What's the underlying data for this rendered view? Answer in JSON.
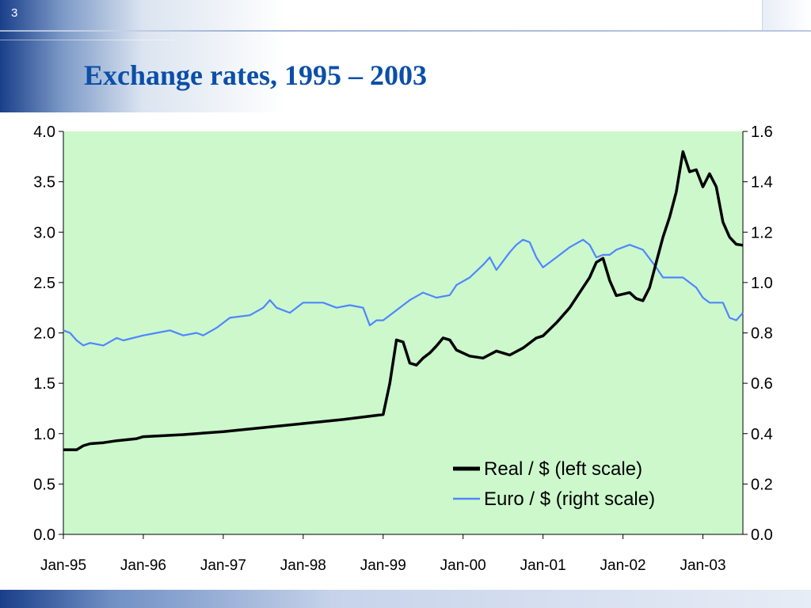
{
  "slide": {
    "number": "3",
    "title": "Exchange rates, 1995 – 2003"
  },
  "colors": {
    "plot_bg": "#ccf8cc",
    "real_line": "#000000",
    "euro_line": "#4f86ff",
    "title": "#0b4fa8"
  },
  "chart_data": {
    "type": "line",
    "title": "",
    "xlabel": "",
    "x_range": [
      "Jan-95",
      "Jul-03"
    ],
    "x_ticks": [
      "Jan-95",
      "Jan-96",
      "Jan-97",
      "Jan-98",
      "Jan-99",
      "Jan-00",
      "Jan-01",
      "Jan-02",
      "Jan-03"
    ],
    "y_left": {
      "ylim": [
        0,
        4.0
      ],
      "ticks": [
        "0.0",
        "0.5",
        "1.0",
        "1.5",
        "2.0",
        "2.5",
        "3.0",
        "3.5",
        "4.0"
      ]
    },
    "y_right": {
      "ylim": [
        0,
        1.6
      ],
      "ticks": [
        "0.0",
        "0.2",
        "0.4",
        "0.6",
        "0.8",
        "1.0",
        "1.2",
        "1.4",
        "1.6"
      ]
    },
    "grid": false,
    "legend_position": "bottom-right",
    "series": [
      {
        "name": "Real / $ (left scale)",
        "axis": "left",
        "points": [
          [
            "Jan-95",
            0.84
          ],
          [
            "Mar-95",
            0.84
          ],
          [
            "Apr-95",
            0.88
          ],
          [
            "May-95",
            0.9
          ],
          [
            "Jul-95",
            0.91
          ],
          [
            "Sep-95",
            0.93
          ],
          [
            "Dec-95",
            0.95
          ],
          [
            "Jan-96",
            0.97
          ],
          [
            "Jul-96",
            0.99
          ],
          [
            "Jan-97",
            1.02
          ],
          [
            "Jul-97",
            1.06
          ],
          [
            "Jan-98",
            1.1
          ],
          [
            "Jul-98",
            1.14
          ],
          [
            "Jan-99",
            1.19
          ],
          [
            "Feb-99",
            1.5
          ],
          [
            "Mar-99",
            1.93
          ],
          [
            "Apr-99",
            1.91
          ],
          [
            "May-99",
            1.7
          ],
          [
            "Jun-99",
            1.68
          ],
          [
            "Jul-99",
            1.75
          ],
          [
            "Aug-99",
            1.8
          ],
          [
            "Sep-99",
            1.87
          ],
          [
            "Oct-99",
            1.95
          ],
          [
            "Nov-99",
            1.93
          ],
          [
            "Dec-99",
            1.83
          ],
          [
            "Feb-00",
            1.77
          ],
          [
            "Apr-00",
            1.75
          ],
          [
            "Jun-00",
            1.82
          ],
          [
            "Aug-00",
            1.78
          ],
          [
            "Oct-00",
            1.85
          ],
          [
            "Dec-00",
            1.95
          ],
          [
            "Jan-01",
            1.97
          ],
          [
            "Mar-01",
            2.1
          ],
          [
            "May-01",
            2.25
          ],
          [
            "Jul-01",
            2.45
          ],
          [
            "Aug-01",
            2.55
          ],
          [
            "Sep-01",
            2.7
          ],
          [
            "Oct-01",
            2.74
          ],
          [
            "Nov-01",
            2.52
          ],
          [
            "Dec-01",
            2.37
          ],
          [
            "Feb-02",
            2.4
          ],
          [
            "Mar-02",
            2.34
          ],
          [
            "Apr-02",
            2.32
          ],
          [
            "May-02",
            2.45
          ],
          [
            "Jun-02",
            2.7
          ],
          [
            "Jul-02",
            2.95
          ],
          [
            "Aug-02",
            3.15
          ],
          [
            "Sep-02",
            3.4
          ],
          [
            "Oct-02",
            3.8
          ],
          [
            "Nov-02",
            3.6
          ],
          [
            "Dec-02",
            3.62
          ],
          [
            "Jan-03",
            3.45
          ],
          [
            "Feb-03",
            3.58
          ],
          [
            "Mar-03",
            3.45
          ],
          [
            "Apr-03",
            3.1
          ],
          [
            "May-03",
            2.95
          ],
          [
            "Jun-03",
            2.88
          ],
          [
            "Jul-03",
            2.87
          ]
        ]
      },
      {
        "name": "Euro / $ (right scale)",
        "axis": "right",
        "points": [
          [
            "Jan-95",
            0.81
          ],
          [
            "Feb-95",
            0.8
          ],
          [
            "Mar-95",
            0.77
          ],
          [
            "Apr-95",
            0.75
          ],
          [
            "May-95",
            0.76
          ],
          [
            "Jul-95",
            0.75
          ],
          [
            "Sep-95",
            0.78
          ],
          [
            "Oct-95",
            0.77
          ],
          [
            "Jan-96",
            0.79
          ],
          [
            "Mar-96",
            0.8
          ],
          [
            "May-96",
            0.81
          ],
          [
            "Jul-96",
            0.79
          ],
          [
            "Sep-96",
            0.8
          ],
          [
            "Oct-96",
            0.79
          ],
          [
            "Dec-96",
            0.82
          ],
          [
            "Feb-97",
            0.86
          ],
          [
            "May-97",
            0.87
          ],
          [
            "Jul-97",
            0.9
          ],
          [
            "Aug-97",
            0.93
          ],
          [
            "Sep-97",
            0.9
          ],
          [
            "Nov-97",
            0.88
          ],
          [
            "Jan-98",
            0.92
          ],
          [
            "Apr-98",
            0.92
          ],
          [
            "Jun-98",
            0.9
          ],
          [
            "Aug-98",
            0.91
          ],
          [
            "Oct-98",
            0.9
          ],
          [
            "Nov-98",
            0.83
          ],
          [
            "Dec-98",
            0.85
          ],
          [
            "Jan-99",
            0.85
          ],
          [
            "Mar-99",
            0.89
          ],
          [
            "May-99",
            0.93
          ],
          [
            "Jul-99",
            0.96
          ],
          [
            "Sep-99",
            0.94
          ],
          [
            "Nov-99",
            0.95
          ],
          [
            "Dec-99",
            0.99
          ],
          [
            "Feb-00",
            1.02
          ],
          [
            "Apr-00",
            1.07
          ],
          [
            "May-00",
            1.1
          ],
          [
            "Jun-00",
            1.05
          ],
          [
            "Aug-00",
            1.12
          ],
          [
            "Sep-00",
            1.15
          ],
          [
            "Oct-00",
            1.17
          ],
          [
            "Nov-00",
            1.16
          ],
          [
            "Dec-00",
            1.1
          ],
          [
            "Jan-01",
            1.06
          ],
          [
            "Mar-01",
            1.1
          ],
          [
            "May-01",
            1.14
          ],
          [
            "Jul-01",
            1.17
          ],
          [
            "Aug-01",
            1.15
          ],
          [
            "Sep-01",
            1.1
          ],
          [
            "Oct-01",
            1.11
          ],
          [
            "Nov-01",
            1.11
          ],
          [
            "Dec-01",
            1.13
          ],
          [
            "Feb-02",
            1.15
          ],
          [
            "Apr-02",
            1.13
          ],
          [
            "Jun-02",
            1.06
          ],
          [
            "Jul-02",
            1.02
          ],
          [
            "Aug-02",
            1.02
          ],
          [
            "Oct-02",
            1.02
          ],
          [
            "Dec-02",
            0.98
          ],
          [
            "Jan-03",
            0.94
          ],
          [
            "Feb-03",
            0.92
          ],
          [
            "Apr-03",
            0.92
          ],
          [
            "May-03",
            0.86
          ],
          [
            "Jun-03",
            0.85
          ],
          [
            "Jul-03",
            0.88
          ]
        ]
      }
    ]
  }
}
